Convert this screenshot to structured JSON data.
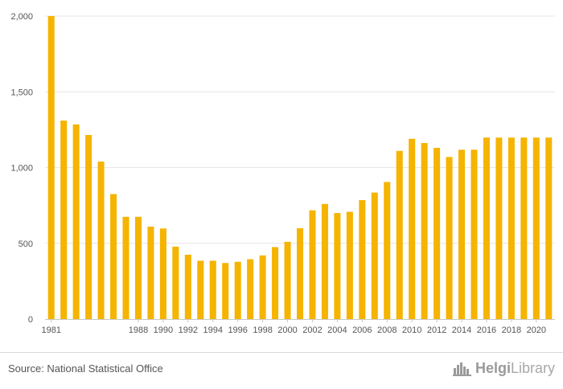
{
  "chart_data": {
    "type": "bar",
    "title": "",
    "xlabel": "",
    "ylabel": "",
    "ylim": [
      0,
      2000
    ],
    "yticks": [
      0,
      500,
      1000,
      1500,
      2000
    ],
    "ytick_labels": [
      "0",
      "500",
      "1,000",
      "1,500",
      "2,000"
    ],
    "grid": true,
    "bar_color": "#F5B400",
    "categories": [
      1981,
      1982,
      1983,
      1984,
      1985,
      1986,
      1987,
      1988,
      1989,
      1990,
      1991,
      1992,
      1993,
      1994,
      1995,
      1996,
      1997,
      1998,
      1999,
      2000,
      2001,
      2002,
      2003,
      2004,
      2005,
      2006,
      2007,
      2008,
      2009,
      2010,
      2011,
      2012,
      2013,
      2014,
      2015,
      2016,
      2017,
      2018,
      2019,
      2020,
      2021
    ],
    "values": [
      2000,
      1310,
      1285,
      1215,
      1040,
      825,
      675,
      675,
      610,
      598,
      478,
      425,
      385,
      385,
      370,
      378,
      395,
      420,
      475,
      510,
      600,
      718,
      760,
      700,
      708,
      785,
      835,
      905,
      1110,
      1190,
      1162,
      1130,
      1070,
      1118,
      1118,
      1198,
      1198,
      1198,
      1198,
      1198,
      1198
    ],
    "xtick_labels": [
      "1981",
      "1988",
      "1990",
      "1992",
      "1994",
      "1996",
      "1998",
      "2000",
      "2002",
      "2004",
      "2006",
      "2008",
      "2010",
      "2012",
      "2014",
      "2016",
      "2018",
      "2020"
    ]
  },
  "footer": {
    "source": "Source: National Statistical Office",
    "brand_a": "Helgi",
    "brand_b": "Library"
  }
}
